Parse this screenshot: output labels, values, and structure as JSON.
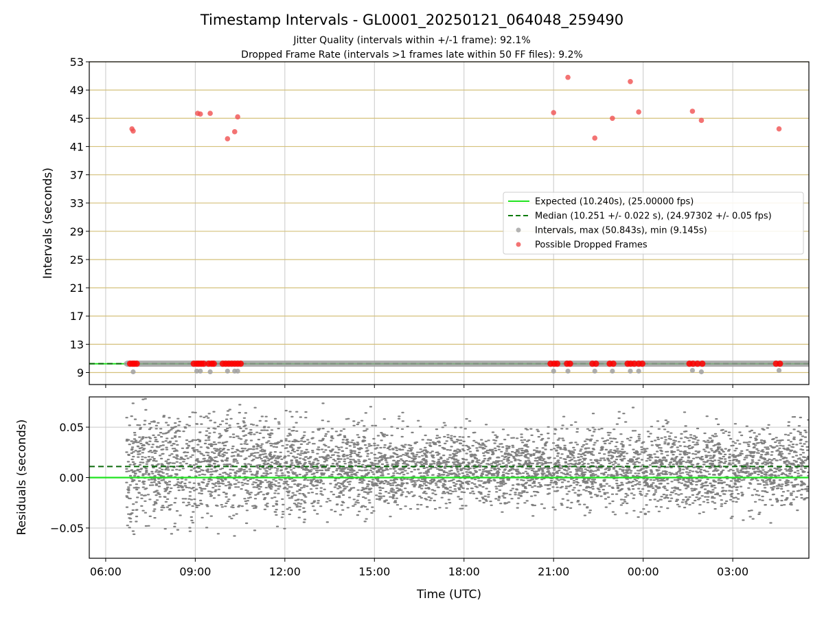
{
  "chart_data": [
    {
      "type": "scatter",
      "title": "Timestamp Intervals - GL0001_20250121_064048_259490",
      "subtitle_lines": [
        "Jitter Quality (intervals within +/-1 frame): 92.1%",
        "Dropped Frame Rate (intervals >1 frames late within 50 FF files): 9.2%"
      ],
      "ylabel": "Intervals (seconds)",
      "xlabel": "",
      "x_unit": "hours since 06:00 UTC (2025-01-21)",
      "xlim": [
        -0.55,
        23.55
      ],
      "ylim": [
        7.3,
        53
      ],
      "yticks": [
        9,
        13,
        17,
        21,
        25,
        29,
        33,
        37,
        41,
        45,
        49,
        53
      ],
      "ygrid_color": "#d4c07a",
      "xticks_hours": [
        0,
        3,
        6,
        9,
        12,
        15,
        18,
        21
      ],
      "expected_interval": 10.24,
      "median_interval": 10.251,
      "interval_max": 50.843,
      "interval_min": 9.145,
      "legend": {
        "placement": "center-right",
        "entries": [
          {
            "label": "Expected (10.240s), (25.00000 fps)",
            "style": "solid-line",
            "color": "#1ee31e"
          },
          {
            "label": "Median (10.251 +/- 0.022 s), (24.97302 +/- 0.05 fps)",
            "style": "dashed-line",
            "color": "#0a7a0a"
          },
          {
            "label": "Intervals, max (50.843s), min (9.145s)",
            "style": "marker",
            "color": "#a0a0a0"
          },
          {
            "label": "Possible Dropped Frames",
            "style": "marker",
            "color": "#f05050"
          }
        ]
      },
      "series": [
        {
          "name": "Possible Dropped Frames",
          "color": "#f05050",
          "points": [
            {
              "x": 0.88,
              "y": 43.5
            },
            {
              "x": 0.92,
              "y": 43.2
            },
            {
              "x": 3.08,
              "y": 45.7
            },
            {
              "x": 3.17,
              "y": 45.6
            },
            {
              "x": 3.5,
              "y": 45.7
            },
            {
              "x": 4.08,
              "y": 42.1
            },
            {
              "x": 4.32,
              "y": 43.1
            },
            {
              "x": 4.42,
              "y": 45.2
            },
            {
              "x": 15.0,
              "y": 45.8
            },
            {
              "x": 15.48,
              "y": 50.8
            },
            {
              "x": 16.38,
              "y": 42.2
            },
            {
              "x": 16.97,
              "y": 45.0
            },
            {
              "x": 17.57,
              "y": 50.2
            },
            {
              "x": 17.85,
              "y": 45.9
            },
            {
              "x": 19.65,
              "y": 46.0
            },
            {
              "x": 19.95,
              "y": 44.7
            },
            {
              "x": 22.55,
              "y": 43.5
            }
          ],
          "band_points_x": [
            0.82,
            0.9,
            0.96,
            1.04,
            2.95,
            3.05,
            3.12,
            3.2,
            3.28,
            3.45,
            3.55,
            3.62,
            3.92,
            4.02,
            4.12,
            4.22,
            4.32,
            4.42,
            4.52,
            14.9,
            15.02,
            15.12,
            15.45,
            15.55,
            16.3,
            16.42,
            16.88,
            17.0,
            17.48,
            17.58,
            17.7,
            17.85,
            17.97,
            19.55,
            19.67,
            19.82,
            19.98,
            22.45,
            22.58
          ],
          "band_y": 10.25
        },
        {
          "name": "Intervals, max (50.843s), min (9.145s)",
          "color": "#a0a0a0",
          "low_points": [
            {
              "x": 0.92,
              "y": 9.1
            },
            {
              "x": 3.05,
              "y": 9.2
            },
            {
              "x": 3.17,
              "y": 9.2
            },
            {
              "x": 3.5,
              "y": 9.1
            },
            {
              "x": 4.08,
              "y": 9.2
            },
            {
              "x": 4.32,
              "y": 9.2
            },
            {
              "x": 4.42,
              "y": 9.2
            },
            {
              "x": 15.0,
              "y": 9.2
            },
            {
              "x": 15.48,
              "y": 9.2
            },
            {
              "x": 16.38,
              "y": 9.2
            },
            {
              "x": 16.97,
              "y": 9.2
            },
            {
              "x": 17.57,
              "y": 9.2
            },
            {
              "x": 17.85,
              "y": 9.2
            },
            {
              "x": 19.65,
              "y": 9.3
            },
            {
              "x": 19.95,
              "y": 9.1
            },
            {
              "x": 22.55,
              "y": 9.3
            }
          ],
          "band_start_x": 0.7,
          "band_end_x": 23.55
        }
      ]
    },
    {
      "type": "scatter",
      "ylabel": "Residuals (seconds)",
      "xlabel": "Time (UTC)",
      "xlim": [
        -0.55,
        23.55
      ],
      "ylim": [
        -0.08,
        0.08
      ],
      "yticks": [
        -0.05,
        0.0,
        0.05
      ],
      "ytick_labels": [
        "−0.05",
        "0.00",
        "0.05"
      ],
      "xtick_labels": [
        "06:00",
        "09:00",
        "12:00",
        "15:00",
        "18:00",
        "21:00",
        "00:00",
        "03:00"
      ],
      "expected_residual": 0.0,
      "median_residual": 0.011,
      "residual_spread": {
        "start_x": 0.7,
        "end_x": 23.55,
        "center": 0.01,
        "sigma_start": 0.028,
        "sigma_mid": 0.017,
        "sigma_end": 0.022,
        "point_count": 5200
      },
      "point_color": "#808080"
    }
  ]
}
